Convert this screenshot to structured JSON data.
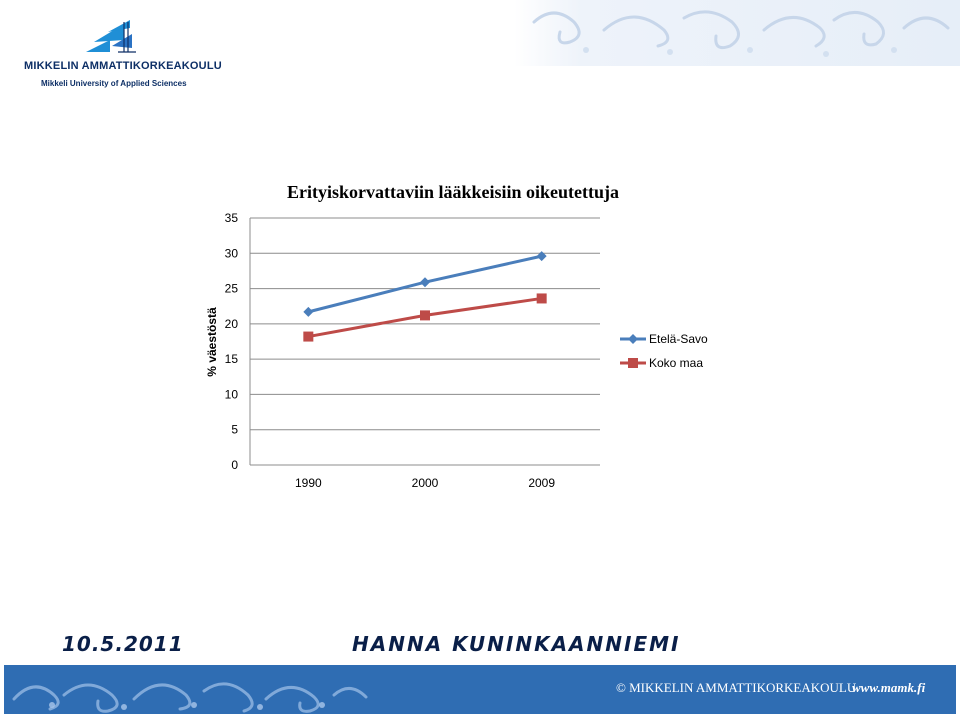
{
  "header": {
    "logo_name": "MIKKELIN AMMATTIKORKEAKOULU",
    "logo_subtitle": "Mikkeli University of Applied Sciences"
  },
  "footer": {
    "date": "10.5.2011",
    "author": "HANNA KUNINKAANNIEMI",
    "copyright": "© MIKKELIN AMMATTIKORKEAKOULU",
    "url": "www.mamk.fi"
  },
  "chart_data": {
    "type": "line",
    "title": "Erityiskorvattaviin lääkkeisiin oikeutettuja",
    "xlabel": "",
    "ylabel": "% väestöstä",
    "categories": [
      "1990",
      "2000",
      "2009"
    ],
    "ylim": [
      0,
      35
    ],
    "yticks": [
      "0",
      "5",
      "10",
      "15",
      "20",
      "25",
      "30",
      "35"
    ],
    "grid": true,
    "legend_position": "right",
    "series": [
      {
        "name": "Etelä-Savo",
        "values": [
          21.7,
          25.9,
          29.6
        ],
        "color": "#4a7ebb",
        "marker": "diamond"
      },
      {
        "name": "Koko maa",
        "values": [
          18.2,
          21.2,
          23.6
        ],
        "color": "#be4b48",
        "marker": "square"
      }
    ]
  }
}
